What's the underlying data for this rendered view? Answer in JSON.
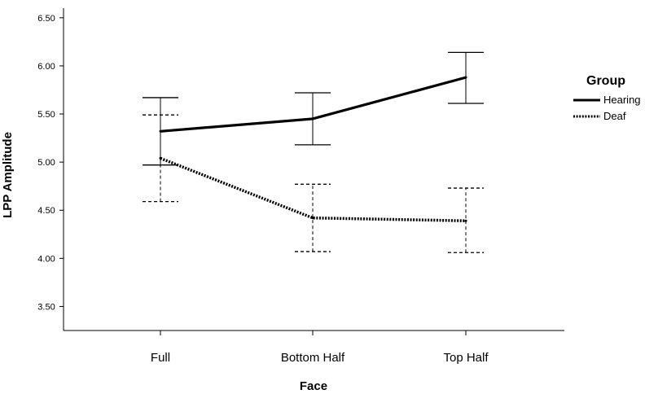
{
  "chart_data": {
    "type": "line",
    "xlabel": "Face",
    "ylabel": "LPP Amplitude",
    "categories": [
      "Full",
      "Bottom Half",
      "Top Half"
    ],
    "ylim": [
      3.25,
      6.6
    ],
    "yticks": [
      "3.50",
      "4.00",
      "4.50",
      "5.00",
      "5.50",
      "6.00",
      "6.50"
    ],
    "legend": {
      "title": "Group",
      "position": "right"
    },
    "series": [
      {
        "name": "Hearing",
        "style": "solid",
        "values": [
          5.32,
          5.45,
          5.88
        ],
        "error_low": [
          4.97,
          5.18,
          5.61
        ],
        "error_high": [
          5.67,
          5.72,
          6.14
        ]
      },
      {
        "name": "Deaf",
        "style": "dotted",
        "values": [
          5.04,
          4.42,
          4.39
        ],
        "error_low": [
          4.59,
          4.07,
          4.06
        ],
        "error_high": [
          5.49,
          4.77,
          4.73
        ]
      }
    ]
  }
}
